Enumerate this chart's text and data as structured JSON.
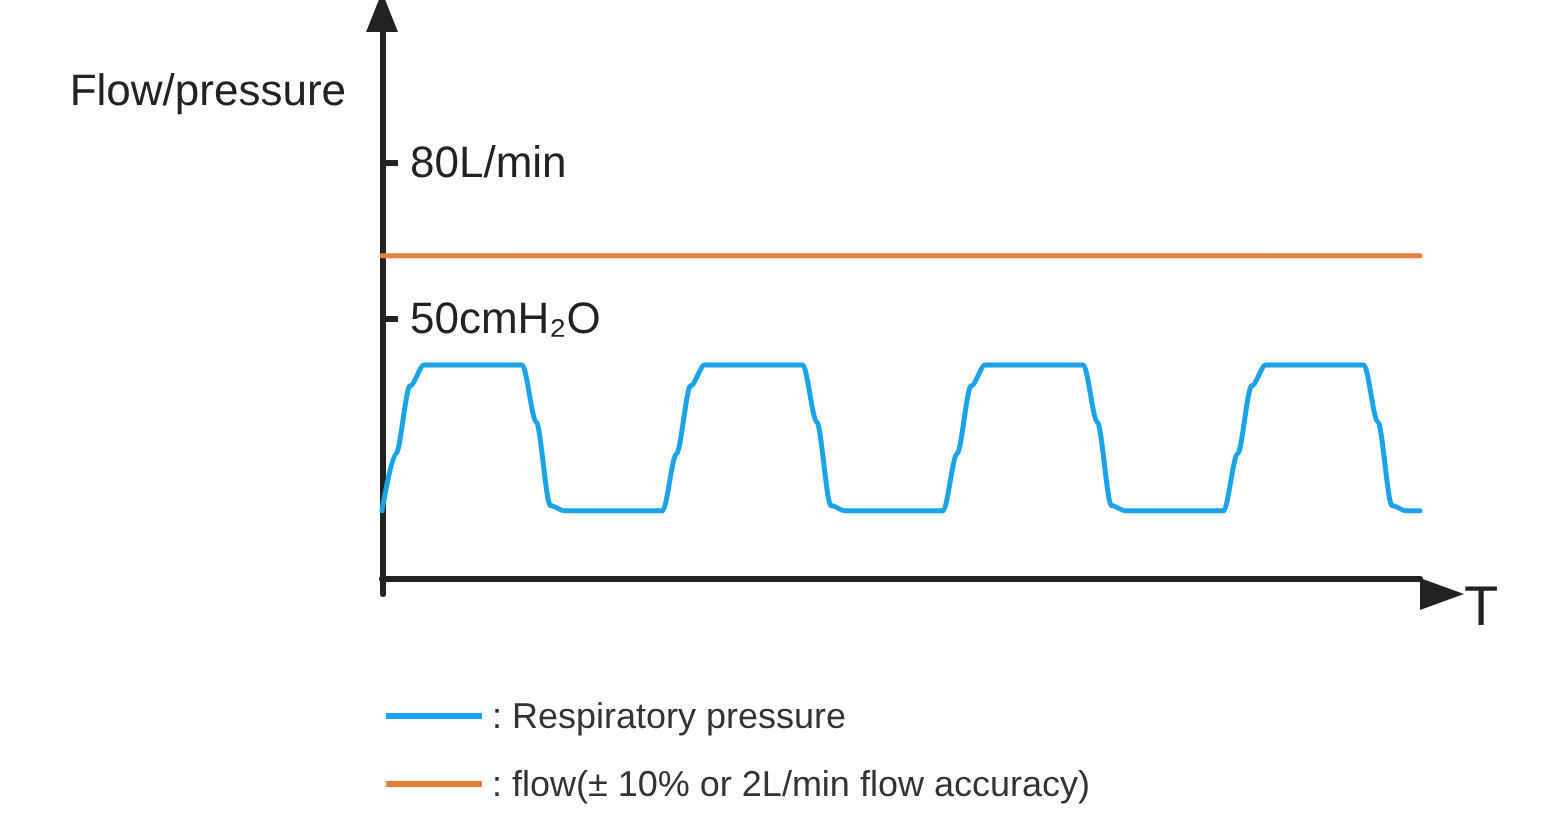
{
  "chart_data": {
    "type": "line",
    "ylabel": "Flow/pressure",
    "xlabel": "T",
    "categories": [
      null,
      null,
      null,
      null,
      null,
      null,
      null,
      null,
      null,
      null,
      null,
      null,
      null,
      null,
      null,
      null,
      null,
      null,
      null,
      null,
      null,
      null,
      null,
      null,
      null,
      null,
      null,
      null,
      null,
      null,
      null,
      null,
      null,
      null,
      null,
      null,
      null,
      null,
      null,
      null,
      null,
      null,
      null,
      null,
      null,
      null,
      null,
      null,
      null,
      null,
      null,
      null,
      null,
      null,
      null,
      null,
      null,
      null,
      null,
      null,
      null,
      null,
      null,
      null,
      null,
      null,
      null,
      null,
      null,
      null,
      null,
      null,
      null,
      null,
      null
    ],
    "ylim": [
      -3,
      105
    ],
    "yticks": [
      {
        "value": 80,
        "label": "80L/min"
      },
      {
        "value": 50,
        "label": "50cmH₂O"
      }
    ],
    "series": [
      {
        "name": ": Respiratory pressure",
        "color": "#1aa3e8",
        "values": [
          13,
          24,
          37,
          41,
          41,
          41,
          41,
          41,
          41,
          41,
          41,
          30,
          14,
          13,
          13,
          13,
          13,
          13,
          13,
          13,
          13,
          24,
          37,
          41,
          41,
          41,
          41,
          41,
          41,
          41,
          41,
          30,
          14,
          13,
          13,
          13,
          13,
          13,
          13,
          13,
          13,
          24,
          37,
          41,
          41,
          41,
          41,
          41,
          41,
          41,
          41,
          30,
          14,
          13,
          13,
          13,
          13,
          13,
          13,
          13,
          13,
          24,
          37,
          41,
          41,
          41,
          41,
          41,
          41,
          41,
          41,
          30,
          14,
          13,
          13
        ]
      },
      {
        "name": ": flow(± 10% or 2L/min flow accuracy)",
        "color": "#e8803a",
        "values": [
          62,
          62,
          62,
          62,
          62,
          62,
          62,
          62,
          62,
          62,
          62,
          62,
          62,
          62,
          62,
          62,
          62,
          62,
          62,
          62,
          62,
          62,
          62,
          62,
          62,
          62,
          62,
          62,
          62,
          62,
          62,
          62,
          62,
          62,
          62,
          62,
          62,
          62,
          62,
          62,
          62,
          62,
          62,
          62,
          62,
          62,
          62,
          62,
          62,
          62,
          62,
          62,
          62,
          62,
          62,
          62,
          62,
          62,
          62,
          62,
          62,
          62,
          62,
          62,
          62,
          62,
          62,
          62,
          62,
          62,
          62,
          62,
          62,
          62,
          62
        ]
      }
    ],
    "grid": false,
    "legend": "bottom",
    "marker": "none",
    "line_style": "solid"
  }
}
